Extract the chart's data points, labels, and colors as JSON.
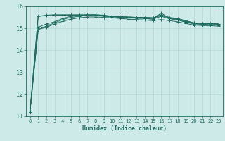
{
  "title": "",
  "xlabel": "Humidex (Indice chaleur)",
  "ylabel": "",
  "bg_color": "#ceeae8",
  "line_color": "#1e6b60",
  "grid_color": "#b8dbd9",
  "axis_color": "#1e6b60",
  "text_color": "#1e6b60",
  "xlim": [
    -0.5,
    23.5
  ],
  "ylim": [
    11,
    16
  ],
  "yticks": [
    11,
    12,
    13,
    14,
    15,
    16
  ],
  "xtick_labels": [
    "0",
    "1",
    "2",
    "3",
    "4",
    "5",
    "6",
    "7",
    "8",
    "9",
    "10",
    "11",
    "12",
    "13",
    "14",
    "15",
    "16",
    "17",
    "18",
    "19",
    "20",
    "21",
    "22",
    "23"
  ],
  "series": [
    [
      11.2,
      14.95,
      15.1,
      15.25,
      15.4,
      15.5,
      15.55,
      15.6,
      15.62,
      15.6,
      15.55,
      15.52,
      15.5,
      15.48,
      15.45,
      15.42,
      15.7,
      15.45,
      15.42,
      15.3,
      15.22,
      15.2,
      15.2,
      15.18
    ],
    [
      11.2,
      15.05,
      15.2,
      15.3,
      15.45,
      15.55,
      15.58,
      15.62,
      15.62,
      15.58,
      15.55,
      15.53,
      15.52,
      15.5,
      15.5,
      15.48,
      15.62,
      15.5,
      15.45,
      15.35,
      15.25,
      15.22,
      15.22,
      15.2
    ],
    [
      11.2,
      14.95,
      15.05,
      15.2,
      15.32,
      15.42,
      15.48,
      15.52,
      15.52,
      15.5,
      15.48,
      15.45,
      15.42,
      15.4,
      15.38,
      15.35,
      15.4,
      15.35,
      15.3,
      15.22,
      15.15,
      15.13,
      15.12,
      15.1
    ],
    [
      11.2,
      15.55,
      15.6,
      15.62,
      15.62,
      15.62,
      15.62,
      15.62,
      15.6,
      15.58,
      15.55,
      15.53,
      15.52,
      15.5,
      15.5,
      15.48,
      15.58,
      15.48,
      15.42,
      15.32,
      15.25,
      15.23,
      15.22,
      15.2
    ],
    [
      11.2,
      15.55,
      15.58,
      15.6,
      15.6,
      15.6,
      15.6,
      15.6,
      15.58,
      15.55,
      15.52,
      15.5,
      15.48,
      15.46,
      15.45,
      15.42,
      15.55,
      15.44,
      15.38,
      15.28,
      15.2,
      15.18,
      15.17,
      15.15
    ]
  ]
}
